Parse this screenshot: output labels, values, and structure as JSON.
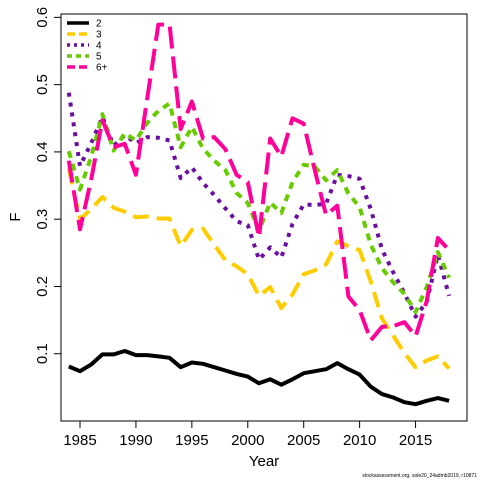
{
  "chart_data": {
    "type": "line",
    "xlabel": "Year",
    "ylabel": "F",
    "footnote": "stockassessment.org, sole20_24admb2019, r10871",
    "xlim": [
      1983.3,
      2019.6
    ],
    "ylim": [
      0.0,
      0.605
    ],
    "xticks": [
      1985,
      1990,
      1995,
      2000,
      2005,
      2010,
      2015
    ],
    "yticks": [
      0.1,
      0.2,
      0.3,
      0.4,
      0.5,
      0.6
    ],
    "ytick_labels": [
      "0.1",
      "0.2",
      "0.3",
      "0.4",
      "0.5",
      "0.6"
    ],
    "legend_position": "top-left",
    "x": [
      1984,
      1985,
      1986,
      1987,
      1988,
      1989,
      1990,
      1991,
      1992,
      1993,
      1994,
      1995,
      1996,
      1997,
      1998,
      1999,
      2000,
      2001,
      2002,
      2003,
      2004,
      2005,
      2006,
      2007,
      2008,
      2009,
      2010,
      2011,
      2012,
      2013,
      2014,
      2015,
      2016,
      2017,
      2018
    ],
    "series": [
      {
        "name": "2",
        "color": "#000000",
        "dash": "solid",
        "values": [
          0.081,
          0.074,
          0.084,
          0.099,
          0.099,
          0.104,
          0.098,
          0.098,
          0.096,
          0.094,
          0.08,
          0.087,
          0.085,
          0.08,
          0.075,
          0.07,
          0.066,
          0.056,
          0.062,
          0.054,
          0.062,
          0.071,
          0.074,
          0.077,
          0.086,
          0.077,
          0.069,
          0.051,
          0.04,
          0.035,
          0.028,
          0.025,
          0.03,
          0.034,
          0.03
        ]
      },
      {
        "name": "3",
        "color": "#ffcc00",
        "dash": "long",
        "values": [
          0.375,
          0.3,
          0.315,
          0.333,
          0.317,
          0.311,
          0.303,
          0.304,
          0.301,
          0.301,
          0.26,
          0.284,
          0.286,
          0.262,
          0.239,
          0.23,
          0.218,
          0.186,
          0.199,
          0.168,
          0.188,
          0.218,
          0.224,
          0.233,
          0.267,
          0.26,
          0.254,
          0.207,
          0.152,
          0.127,
          0.101,
          0.08,
          0.09,
          0.096,
          0.078
        ]
      },
      {
        "name": "4",
        "color": "#6a0ea0",
        "dash": "dot",
        "values": [
          0.488,
          0.379,
          0.413,
          0.452,
          0.409,
          0.425,
          0.413,
          0.422,
          0.421,
          0.417,
          0.361,
          0.377,
          0.354,
          0.336,
          0.316,
          0.297,
          0.291,
          0.24,
          0.258,
          0.243,
          0.293,
          0.322,
          0.321,
          0.323,
          0.366,
          0.364,
          0.36,
          0.315,
          0.255,
          0.221,
          0.19,
          0.155,
          0.177,
          0.247,
          0.186
        ]
      },
      {
        "name": "5",
        "color": "#66cc00",
        "dash": "dash",
        "values": [
          0.401,
          0.344,
          0.393,
          0.456,
          0.402,
          0.428,
          0.417,
          0.443,
          0.461,
          0.472,
          0.407,
          0.437,
          0.405,
          0.387,
          0.373,
          0.339,
          0.324,
          0.283,
          0.325,
          0.309,
          0.355,
          0.381,
          0.378,
          0.358,
          0.373,
          0.338,
          0.318,
          0.262,
          0.227,
          0.206,
          0.189,
          0.162,
          0.199,
          0.251,
          0.213
        ]
      },
      {
        "name": "6+",
        "color": "#ff0099",
        "dash": "longdash",
        "values": [
          0.387,
          0.285,
          0.359,
          0.447,
          0.407,
          0.412,
          0.366,
          0.478,
          0.589,
          0.59,
          0.434,
          0.475,
          0.42,
          0.422,
          0.404,
          0.366,
          0.355,
          0.273,
          0.42,
          0.393,
          0.45,
          0.442,
          0.372,
          0.306,
          0.32,
          0.185,
          0.165,
          0.12,
          0.14,
          0.141,
          0.147,
          0.126,
          0.178,
          0.272,
          0.254
        ]
      }
    ]
  }
}
